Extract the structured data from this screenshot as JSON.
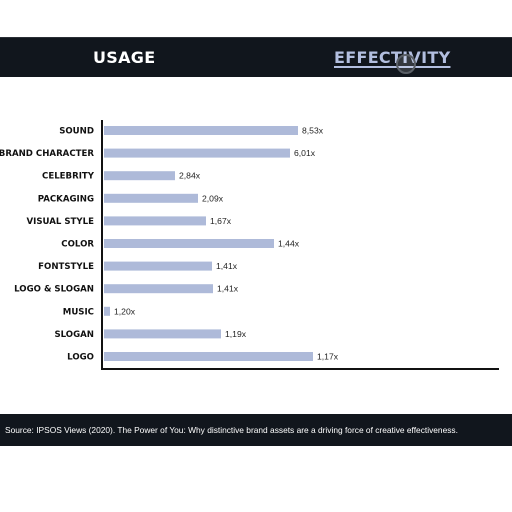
{
  "header": {
    "tabs": [
      {
        "label": "USAGE"
      },
      {
        "label": "EFFECTIVITY"
      }
    ]
  },
  "colors": {
    "bar": "#aebad9",
    "header_bg": "#11161d",
    "axis": "#111111"
  },
  "chart_data": {
    "type": "bar",
    "orientation": "horizontal",
    "categories": [
      "SOUND",
      "BRAND CHARACTER",
      "CELEBRITY",
      "PACKAGING",
      "VISUAL STYLE",
      "COLOR",
      "FONTSTYLE",
      "LOGO & SLOGAN",
      "MUSIC",
      "SLOGAN",
      "LOGO"
    ],
    "values": [
      8.53,
      6.01,
      2.84,
      2.09,
      1.67,
      1.44,
      1.41,
      1.41,
      1.2,
      1.19,
      1.17
    ],
    "value_labels": [
      "8,53x",
      "6,01x",
      "2,84x",
      "2,09x",
      "1,67x",
      "1,44x",
      "1,41x",
      "1,41x",
      "1,20x",
      "1,19x",
      "1,17x"
    ],
    "title": "",
    "xlabel": "",
    "ylabel": "",
    "grid": false
  },
  "footer": {
    "source": "Source: IPSOS Views (2020). The Power of You: Why distinctive brand assets are a driving force of creative effectiveness."
  }
}
